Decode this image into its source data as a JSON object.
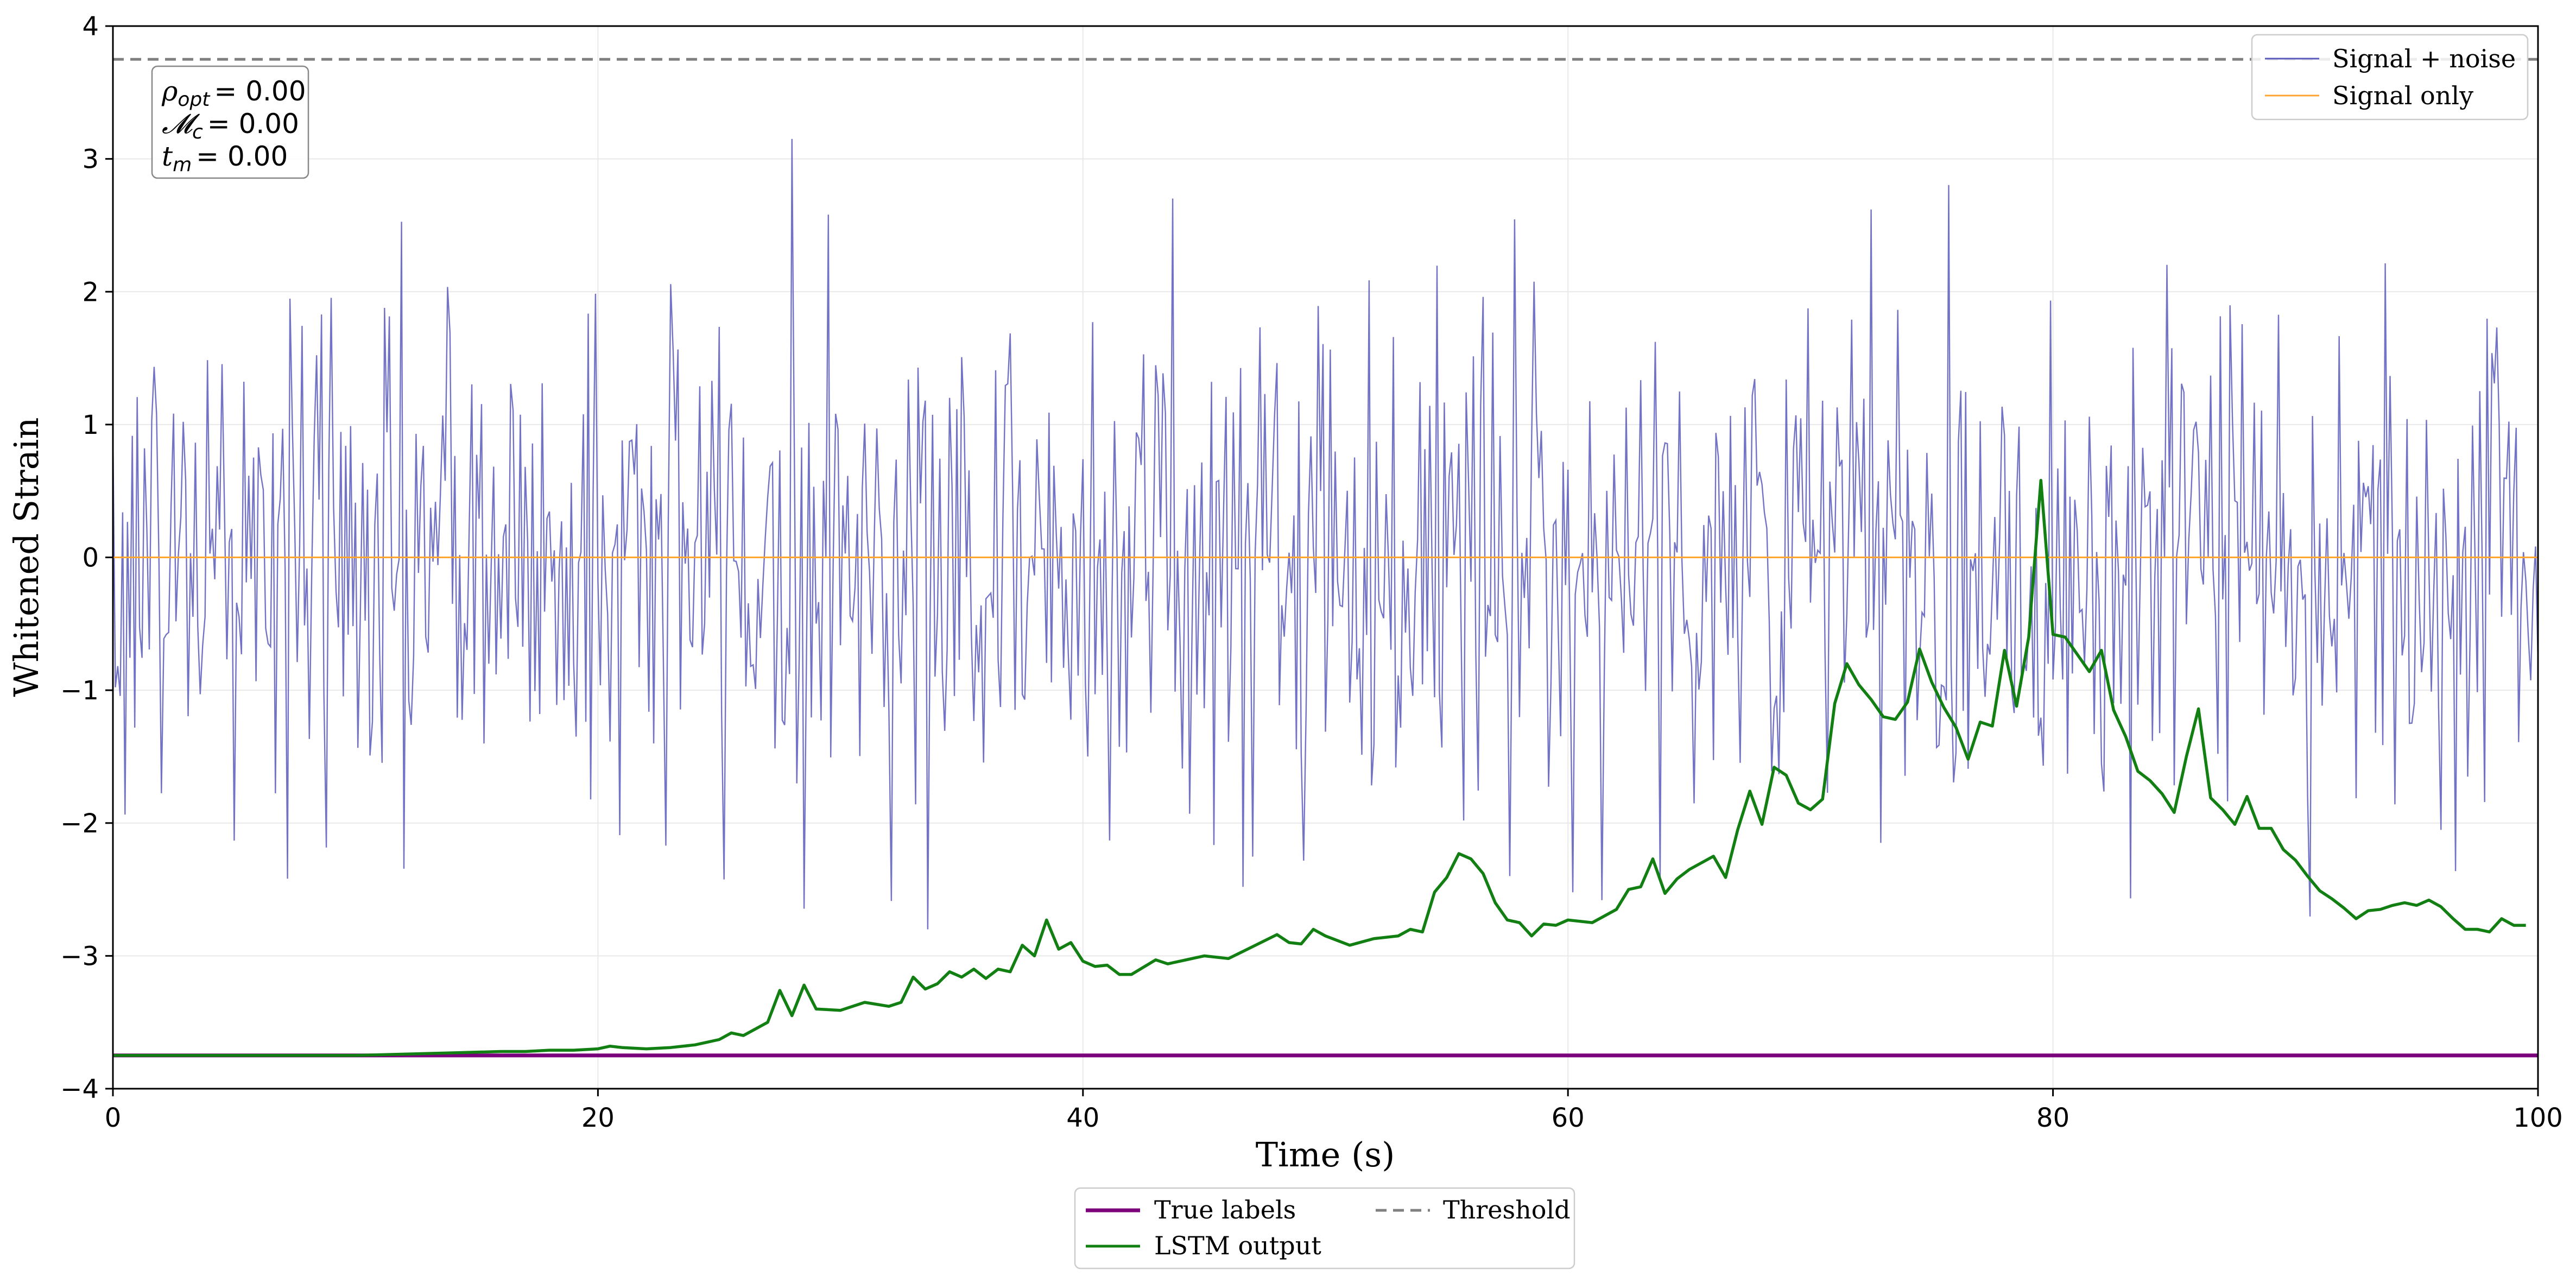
{
  "chart_data": {
    "type": "line",
    "xlabel": "Time (s)",
    "ylabel": "Whitened Strain",
    "xlim": [
      0,
      100
    ],
    "ylim": [
      -4,
      4
    ],
    "x_ticks": [
      0,
      20,
      40,
      60,
      80,
      100
    ],
    "y_ticks": [
      -4,
      -3,
      -2,
      -1,
      0,
      1,
      2,
      3,
      4
    ],
    "x_tick_labels": [
      "0",
      "20",
      "40",
      "60",
      "80",
      "100"
    ],
    "y_tick_labels": [
      "−4",
      "−3",
      "−2",
      "−1",
      "0",
      "1",
      "2",
      "3",
      "4"
    ],
    "grid": true,
    "threshold": 3.75,
    "stats_box": {
      "location": "top-left",
      "lines": [
        {
          "sym": "ρ",
          "sub": "opt",
          "value": "= 0.00"
        },
        {
          "sym": "𝓜",
          "sub": "c",
          "value": "= 0.00"
        },
        {
          "sym": "t",
          "sub": "m",
          "value": "= 0.00"
        }
      ]
    },
    "legend_top": {
      "location": "top-right",
      "entries": [
        {
          "label": "Signal + noise",
          "color": "#5b5bbb"
        },
        {
          "label": "Signal only",
          "color": "#ffa530"
        }
      ]
    },
    "legend_bottom": {
      "location": "below-plot",
      "entries": [
        {
          "label": "True labels",
          "color": "#7b007b",
          "style": "solid"
        },
        {
          "label": "Threshold",
          "color": "#808080",
          "style": "dashed"
        },
        {
          "label": "LSTM output",
          "color": "#117f11",
          "style": "solid"
        }
      ]
    },
    "series": [
      {
        "name": "Signal + noise",
        "color": "#5b5bbb",
        "note": "white-noise realisation, approx. standard deviation 1, 10 samples per second, 0–100 s",
        "noise_std": 1.0,
        "sample_rate": 10
      },
      {
        "name": "Signal only",
        "color": "#ffa530",
        "x": [
          0,
          100
        ],
        "y": [
          0,
          0
        ]
      },
      {
        "name": "True labels",
        "color": "#7b007b",
        "x": [
          0,
          100
        ],
        "y": [
          -3.75,
          -3.75
        ]
      },
      {
        "name": "Threshold",
        "color": "#808080",
        "x": [
          0,
          100
        ],
        "y": [
          3.75,
          3.75
        ]
      },
      {
        "name": "LSTM output",
        "color": "#117f11",
        "x": [
          0,
          5,
          10,
          12,
          14,
          16,
          17,
          18,
          19,
          20,
          20.5,
          21,
          22,
          23,
          24,
          25,
          25.5,
          26,
          27,
          27.5,
          28,
          28.5,
          29,
          30,
          31,
          32,
          32.5,
          33,
          33.5,
          34,
          34.5,
          35,
          35.5,
          36,
          36.5,
          37,
          37.5,
          38,
          38.5,
          39,
          39.5,
          40,
          40.5,
          41,
          41.5,
          42,
          43,
          43.5,
          44,
          45,
          46,
          47,
          48,
          48.5,
          49,
          49.5,
          50,
          51,
          52,
          53,
          53.5,
          54,
          54.5,
          55,
          55.5,
          56,
          56.5,
          57,
          57.5,
          58,
          58.5,
          59,
          59.5,
          60,
          61,
          62,
          62.5,
          63,
          63.5,
          64,
          64.5,
          65,
          66,
          66.5,
          67,
          67.5,
          68,
          68.5,
          69,
          69.5,
          70,
          70.5,
          71,
          71.5,
          72,
          72.5,
          73,
          73.5,
          74,
          74.5,
          75,
          75.5,
          76,
          76.5,
          77,
          77.5,
          78,
          78.5,
          79,
          79.5,
          80,
          80.5,
          81,
          81.5,
          82,
          82.5,
          83,
          83.5,
          84,
          84.5,
          85,
          85.5,
          86,
          86.5,
          87,
          87.5,
          88,
          88.5,
          89,
          89.5,
          90,
          90.5,
          91,
          91.5,
          92,
          92.5,
          93,
          93.5,
          94,
          94.5,
          95,
          95.5,
          96,
          96.5,
          97,
          97.5,
          98,
          98.5,
          99,
          99.5
        ],
        "y": [
          -3.75,
          -3.75,
          -3.75,
          -3.74,
          -3.73,
          -3.72,
          -3.72,
          -3.71,
          -3.71,
          -3.7,
          -3.68,
          -3.69,
          -3.7,
          -3.69,
          -3.67,
          -3.63,
          -3.58,
          -3.6,
          -3.5,
          -3.26,
          -3.45,
          -3.22,
          -3.4,
          -3.41,
          -3.35,
          -3.38,
          -3.35,
          -3.16,
          -3.25,
          -3.21,
          -3.12,
          -3.16,
          -3.1,
          -3.17,
          -3.1,
          -3.12,
          -2.92,
          -3.0,
          -2.73,
          -2.95,
          -2.9,
          -3.04,
          -3.08,
          -3.07,
          -3.14,
          -3.14,
          -3.03,
          -3.06,
          -3.04,
          -3.0,
          -3.02,
          -2.93,
          -2.84,
          -2.9,
          -2.91,
          -2.8,
          -2.85,
          -2.92,
          -2.87,
          -2.85,
          -2.8,
          -2.82,
          -2.52,
          -2.41,
          -2.23,
          -2.27,
          -2.38,
          -2.6,
          -2.73,
          -2.75,
          -2.85,
          -2.76,
          -2.77,
          -2.73,
          -2.75,
          -2.65,
          -2.5,
          -2.48,
          -2.27,
          -2.53,
          -2.42,
          -2.35,
          -2.25,
          -2.41,
          -2.05,
          -1.76,
          -2.01,
          -1.58,
          -1.64,
          -1.85,
          -1.9,
          -1.82,
          -1.1,
          -0.8,
          -0.96,
          -1.07,
          -1.2,
          -1.22,
          -1.09,
          -0.69,
          -0.94,
          -1.13,
          -1.28,
          -1.52,
          -1.24,
          -1.27,
          -0.7,
          -1.12,
          -0.6,
          0.58,
          -0.58,
          -0.6,
          -0.73,
          -0.86,
          -0.7,
          -1.15,
          -1.35,
          -1.61,
          -1.68,
          -1.78,
          -1.92,
          -1.5,
          -1.14,
          -1.81,
          -1.9,
          -2.01,
          -1.8,
          -2.04,
          -2.04,
          -2.2,
          -2.28,
          -2.4,
          -2.51,
          -2.57,
          -2.64,
          -2.72,
          -2.66,
          -2.65,
          -2.62,
          -2.6,
          -2.62,
          -2.58,
          -2.63,
          -2.72,
          -2.8,
          -2.8,
          -2.82,
          -2.72,
          -2.77,
          -2.77
        ]
      }
    ]
  }
}
